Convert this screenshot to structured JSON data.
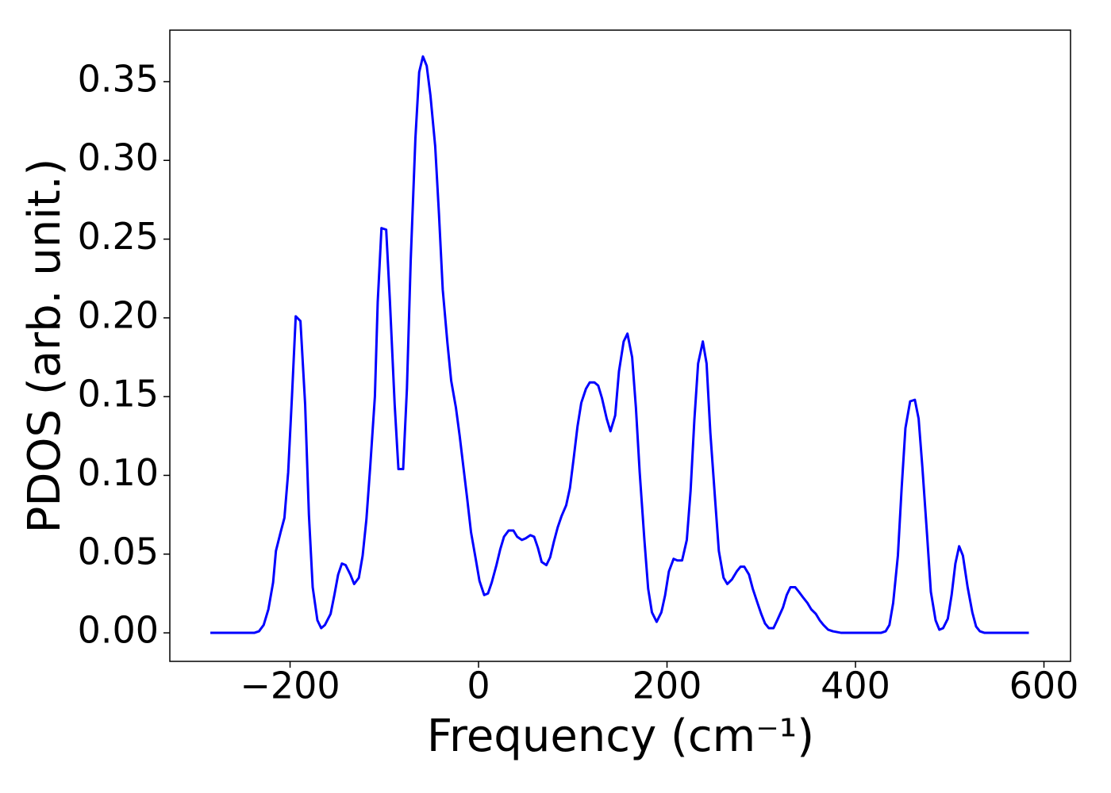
{
  "chart_data": {
    "type": "line",
    "xlabel": "Frequency (cm⁻¹)",
    "ylabel": "PDOS (arb. unit.)",
    "xlim": [
      -327.6,
      628.2
    ],
    "ylim": [
      -0.0181,
      0.3827
    ],
    "xticks": [
      {
        "value": -200,
        "label": "−200"
      },
      0,
      200,
      400,
      600
    ],
    "yticks": [
      {
        "value": 0,
        "label": "0.00"
      },
      0.05,
      {
        "value": 0.1,
        "label": "0.10"
      },
      0.15,
      {
        "value": 0.2,
        "label": "0.20"
      },
      0.25,
      {
        "value": 0.3,
        "label": "0.30"
      },
      0.35
    ],
    "grid": false,
    "series": [
      {
        "color": "#0000ff",
        "x": [
          -284.6,
          -238,
          -233,
          -228,
          -223,
          -218,
          -215,
          -210,
          -206,
          -202,
          -198,
          -194,
          -189,
          -184,
          -180,
          -176,
          -171,
          -167,
          -163,
          -157,
          -153,
          -149,
          -145,
          -141,
          -136,
          -132,
          -127,
          -123,
          -119,
          -115,
          -110,
          -107,
          -103,
          -98,
          -94,
          -89,
          -85,
          -80,
          -76,
          -72,
          -67,
          -63,
          -59,
          -55,
          -51,
          -46,
          -42,
          -38,
          -33,
          -29,
          -24,
          -20,
          -16,
          -12,
          -8,
          -3,
          1,
          6,
          10,
          14,
          19,
          23,
          27,
          32,
          37,
          41,
          46,
          50,
          55,
          59,
          63,
          67,
          72,
          76,
          80,
          84,
          88,
          93,
          97,
          101,
          105,
          109,
          114,
          118,
          123,
          127,
          131,
          136,
          140,
          145,
          149,
          154,
          158,
          163,
          167,
          171,
          176,
          180,
          184,
          189,
          194,
          198,
          202,
          207,
          211,
          216,
          221,
          225,
          229,
          233,
          238,
          242,
          246,
          251,
          255,
          260,
          264,
          269,
          274,
          278,
          282,
          287,
          291,
          296,
          300,
          304,
          308,
          313,
          317,
          323,
          327,
          331,
          336,
          340,
          345,
          349,
          353,
          358,
          362,
          366,
          371,
          376,
          385,
          427,
          432,
          436,
          440,
          445,
          449,
          453,
          458,
          463,
          467,
          471,
          476,
          480,
          485,
          489,
          493,
          498,
          502,
          506,
          510,
          514,
          519,
          524,
          528,
          532,
          537,
          584
        ],
        "values": [
          0,
          0,
          0.001,
          0.005,
          0.015,
          0.032,
          0.052,
          0.064,
          0.073,
          0.102,
          0.15,
          0.201,
          0.198,
          0.145,
          0.075,
          0.029,
          0.008,
          0.003,
          0.005,
          0.012,
          0.024,
          0.037,
          0.044,
          0.043,
          0.037,
          0.031,
          0.035,
          0.049,
          0.072,
          0.105,
          0.15,
          0.21,
          0.257,
          0.256,
          0.21,
          0.145,
          0.104,
          0.104,
          0.155,
          0.236,
          0.314,
          0.356,
          0.366,
          0.36,
          0.341,
          0.309,
          0.266,
          0.218,
          0.184,
          0.16,
          0.143,
          0.125,
          0.105,
          0.085,
          0.064,
          0.047,
          0.033,
          0.024,
          0.025,
          0.032,
          0.043,
          0.053,
          0.061,
          0.065,
          0.065,
          0.061,
          0.059,
          0.06,
          0.062,
          0.061,
          0.054,
          0.045,
          0.043,
          0.048,
          0.058,
          0.067,
          0.074,
          0.081,
          0.092,
          0.111,
          0.131,
          0.146,
          0.155,
          0.159,
          0.159,
          0.157,
          0.149,
          0.136,
          0.128,
          0.138,
          0.166,
          0.185,
          0.19,
          0.175,
          0.143,
          0.102,
          0.059,
          0.028,
          0.013,
          0.007,
          0.013,
          0.024,
          0.039,
          0.047,
          0.046,
          0.046,
          0.059,
          0.09,
          0.135,
          0.171,
          0.185,
          0.171,
          0.127,
          0.085,
          0.052,
          0.035,
          0.031,
          0.034,
          0.039,
          0.042,
          0.042,
          0.037,
          0.028,
          0.019,
          0.012,
          0.006,
          0.003,
          0.003,
          0.008,
          0.016,
          0.024,
          0.029,
          0.029,
          0.026,
          0.022,
          0.019,
          0.015,
          0.012,
          0.008,
          0.005,
          0.002,
          0.001,
          0,
          0,
          0.001,
          0.005,
          0.019,
          0.049,
          0.092,
          0.13,
          0.147,
          0.148,
          0.136,
          0.105,
          0.062,
          0.026,
          0.008,
          0.002,
          0.003,
          0.009,
          0.024,
          0.044,
          0.055,
          0.049,
          0.029,
          0.013,
          0.004,
          0.001,
          0,
          0
        ]
      }
    ]
  }
}
